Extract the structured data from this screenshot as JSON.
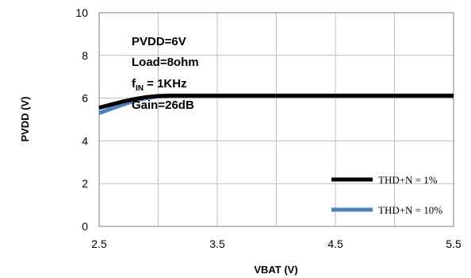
{
  "chart_data": {
    "type": "line",
    "xlabel": "VBAT (V)",
    "ylabel": "PVDD (V)",
    "xlim": [
      2.5,
      5.5
    ],
    "ylim": [
      0,
      10
    ],
    "x_ticks": [
      "2.5",
      "3.5",
      "4.5",
      "5.5"
    ],
    "y_ticks": [
      "0",
      "2",
      "4",
      "6",
      "8",
      "10"
    ],
    "grid": true,
    "legend_position": "bottom-right",
    "annotations": [
      {
        "text": "PVDD=6V"
      },
      {
        "text": "Load=8ohm"
      },
      {
        "text": "f",
        "sub": "IN",
        "tail": " = 1KHz"
      },
      {
        "text": "Gain=26dB"
      }
    ],
    "series": [
      {
        "name": "THD+N = 1%",
        "color": "#000000",
        "x": [
          2.5,
          2.6,
          2.7,
          2.8,
          2.9,
          3.0,
          3.1,
          3.2,
          3.5,
          4.0,
          4.5,
          5.0,
          5.5
        ],
        "y": [
          5.55,
          5.7,
          5.84,
          5.96,
          6.05,
          6.1,
          6.12,
          6.12,
          6.12,
          6.12,
          6.12,
          6.12,
          6.12
        ]
      },
      {
        "name": "THD+N = 10%",
        "color": "#4f81bd",
        "x": [
          2.5,
          2.6,
          2.7,
          2.8,
          2.9,
          3.0,
          3.1,
          3.2,
          3.5,
          4.0,
          4.5,
          5.0,
          5.5
        ],
        "y": [
          5.3,
          5.5,
          5.7,
          5.88,
          6.0,
          6.08,
          6.1,
          6.1,
          6.1,
          6.1,
          6.1,
          6.1,
          6.1
        ]
      }
    ]
  }
}
